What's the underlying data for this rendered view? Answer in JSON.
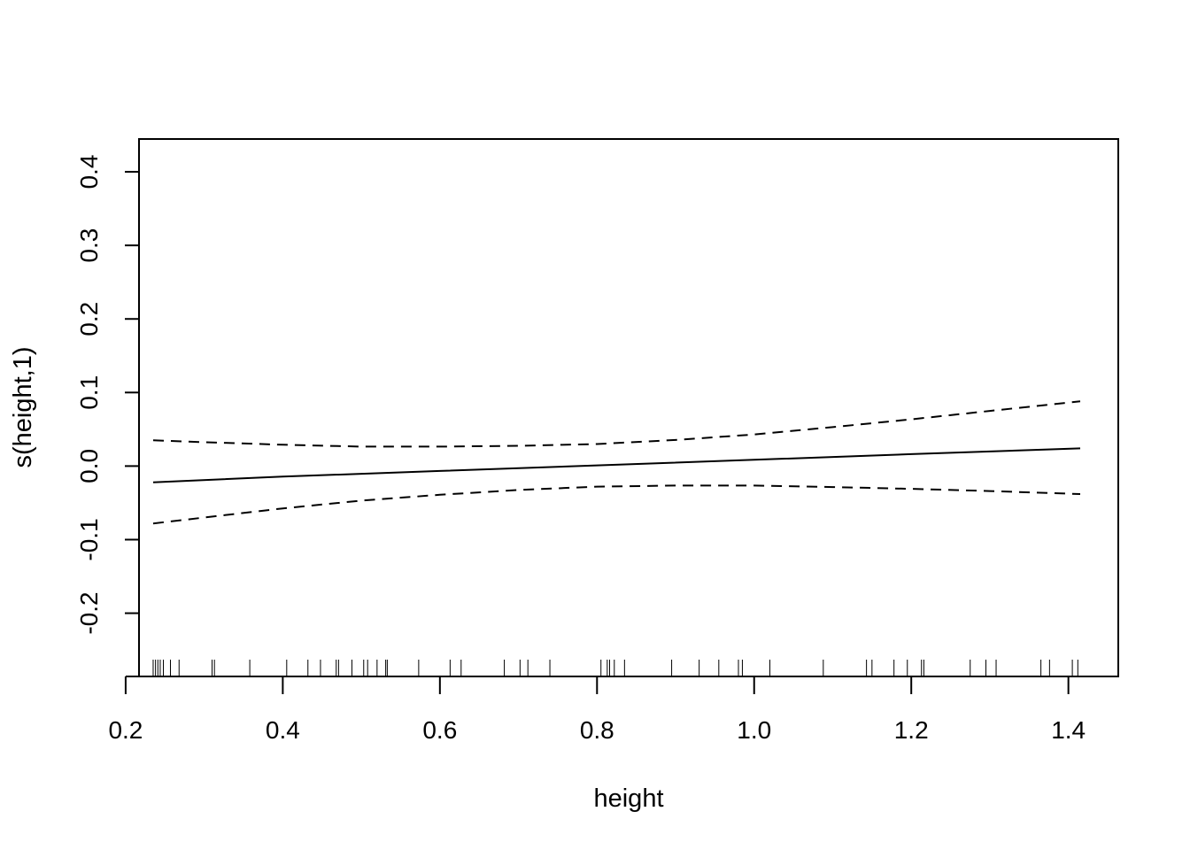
{
  "chart_data": {
    "type": "line",
    "title": "",
    "xlabel": "height",
    "ylabel": "s(height,1)",
    "xlim": [
      0.217,
      1.4635
    ],
    "ylim": [
      -0.286,
      0.4446
    ],
    "x_ticks": [
      "0.2",
      "0.4",
      "0.6",
      "0.8",
      "1.0",
      "1.2",
      "1.4"
    ],
    "y_ticks": [
      "-0.2",
      "-0.1",
      "0.0",
      "0.1",
      "0.2",
      "0.3",
      "0.4"
    ],
    "grid": false,
    "legend": "none",
    "series": [
      {
        "style": "solid",
        "x": [
          0.235,
          0.4,
          0.6,
          0.8,
          1.0,
          1.2,
          1.415
        ],
        "y": [
          -0.022,
          -0.0143,
          -0.0066,
          0.0009,
          0.0085,
          0.0162,
          0.024
        ]
      },
      {
        "style": "dashed",
        "x": [
          0.235,
          0.3,
          0.4,
          0.5,
          0.6,
          0.7,
          0.8,
          0.9,
          1.0,
          1.1,
          1.2,
          1.3,
          1.415
        ],
        "y": [
          0.035,
          0.0325,
          0.029,
          0.0265,
          0.0265,
          0.0275,
          0.03,
          0.0355,
          0.043,
          0.053,
          0.0635,
          0.075,
          0.088
        ]
      },
      {
        "style": "dashed",
        "x": [
          0.235,
          0.3,
          0.4,
          0.5,
          0.6,
          0.7,
          0.8,
          0.9,
          1.0,
          1.1,
          1.2,
          1.3,
          1.415
        ],
        "y": [
          -0.078,
          -0.07,
          -0.0575,
          -0.047,
          -0.039,
          -0.0325,
          -0.028,
          -0.0265,
          -0.0265,
          -0.0285,
          -0.031,
          -0.034,
          -0.038
        ]
      }
    ],
    "rug": [
      0.235,
      0.238,
      0.241,
      0.244,
      0.248,
      0.257,
      0.268,
      0.31,
      0.313,
      0.358,
      0.405,
      0.432,
      0.448,
      0.468,
      0.471,
      0.488,
      0.503,
      0.508,
      0.52,
      0.531,
      0.533,
      0.573,
      0.613,
      0.627,
      0.682,
      0.702,
      0.712,
      0.74,
      0.805,
      0.813,
      0.816,
      0.822,
      0.835,
      0.895,
      0.93,
      0.955,
      0.98,
      0.985,
      1.02,
      1.088,
      1.143,
      1.15,
      1.178,
      1.195,
      1.213,
      1.216,
      1.275,
      1.295,
      1.308,
      1.365,
      1.376,
      1.405,
      1.412
    ]
  }
}
